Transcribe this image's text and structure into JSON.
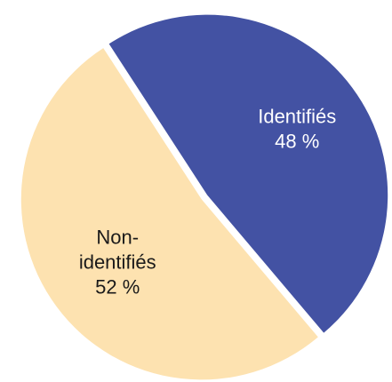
{
  "chart_data": {
    "type": "pie",
    "title": "",
    "legend": "none",
    "slices": [
      {
        "name_lines": [
          "Identifiés"
        ],
        "value": 48,
        "value_label": "48 %",
        "color": "#4352a3",
        "label_color": "#ffffff"
      },
      {
        "name_lines": [
          "Non-",
          "identifiés"
        ],
        "value": 52,
        "value_label": "52 %",
        "color": "#fde2b0",
        "label_color": "#1a1a1a"
      }
    ]
  }
}
